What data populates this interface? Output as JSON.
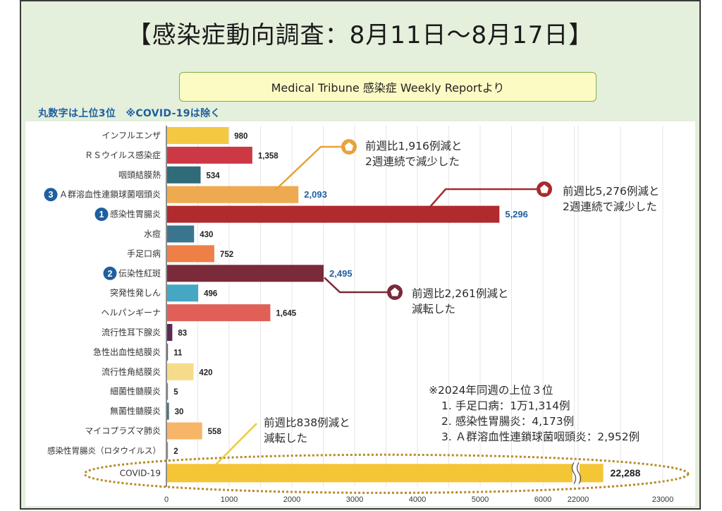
{
  "slide": {
    "title": "【感染症動向調査：8月11日～8月17日】",
    "source": "Medical Tribune 感染症 Weekly Reportより"
  },
  "chart_data": {
    "type": "bar",
    "orientation": "horizontal",
    "note": "丸数字は上位3位　※COVID-19は除く",
    "categories": [
      "インフルエンザ",
      "ＲＳウイルス感染症",
      "咽頭結膜熱",
      "Ａ群溶血性連鎖球菌咽頭炎",
      "感染性胃腸炎",
      "水痘",
      "手足口病",
      "伝染性紅斑",
      "突発性発しん",
      "ヘルパンギーナ",
      "流行性耳下腺炎",
      "急性出血性結膜炎",
      "流行性角結膜炎",
      "細菌性髄膜炎",
      "無菌性髄膜炎",
      "マイコプラズマ肺炎",
      "感染性胃腸炎（ロタウイルス）",
      "COVID-19"
    ],
    "values": [
      980,
      1358,
      534,
      2093,
      5296,
      430,
      752,
      2495,
      496,
      1645,
      83,
      11,
      420,
      5,
      30,
      558,
      2,
      22288
    ],
    "value_labels": [
      "980",
      "1,358",
      "534",
      "2,093",
      "5,296",
      "430",
      "752",
      "2,495",
      "496",
      "1,645",
      "83",
      "11",
      "420",
      "5",
      "30",
      "558",
      "2",
      "22,288"
    ],
    "colors": [
      "#f5c842",
      "#cd3845",
      "#2f6b78",
      "#eeaa50",
      "#b02a2e",
      "#3a7590",
      "#ee8047",
      "#7b2a3a",
      "#45a7c4",
      "#e06058",
      "#5c2a55",
      "#4a6a7a",
      "#f6dc8a",
      "#5a8a9a",
      "#4a7080",
      "#f7b568",
      "#8a8a8a",
      "#f4c534"
    ],
    "ranks": [
      {
        "category_index": 4,
        "rank": "1"
      },
      {
        "category_index": 7,
        "rank": "2"
      },
      {
        "category_index": 3,
        "rank": "3"
      }
    ],
    "x_ticks": [
      "0",
      "1000",
      "2000",
      "3000",
      "4000",
      "5000",
      "6000",
      "22000",
      "23000"
    ],
    "axis_break": {
      "from": 6000,
      "to": 22000
    },
    "xlim": [
      0,
      23000
    ],
    "grid": true,
    "emphasis_colors": {
      "label_highlight": "#1f5f9e",
      "covid_outline": "#b58d2a"
    }
  },
  "annotations": [
    {
      "id": "strep",
      "lines": [
        "前週比1,916例減と",
        "2週連続で減少した"
      ],
      "color": "#e8a23a"
    },
    {
      "id": "gastro",
      "lines": [
        "前週比5,276例減と",
        "2週連続で減少した"
      ],
      "color": "#a82a2e"
    },
    {
      "id": "erythema",
      "lines": [
        "前週比2,261例減と",
        "減転した"
      ],
      "color": "#7b2a3a"
    },
    {
      "id": "covid",
      "lines": [
        "前週比838例減と",
        "減転した"
      ],
      "color": "#eecb38"
    }
  ],
  "reference_2024": {
    "heading": "※2024年同週の上位３位",
    "items": [
      "1. 手足口病：1万1,314例",
      "2. 感染性胃腸炎：4,173例",
      "3. Ａ群溶血性連鎖球菌咽頭炎：2,952例"
    ]
  }
}
